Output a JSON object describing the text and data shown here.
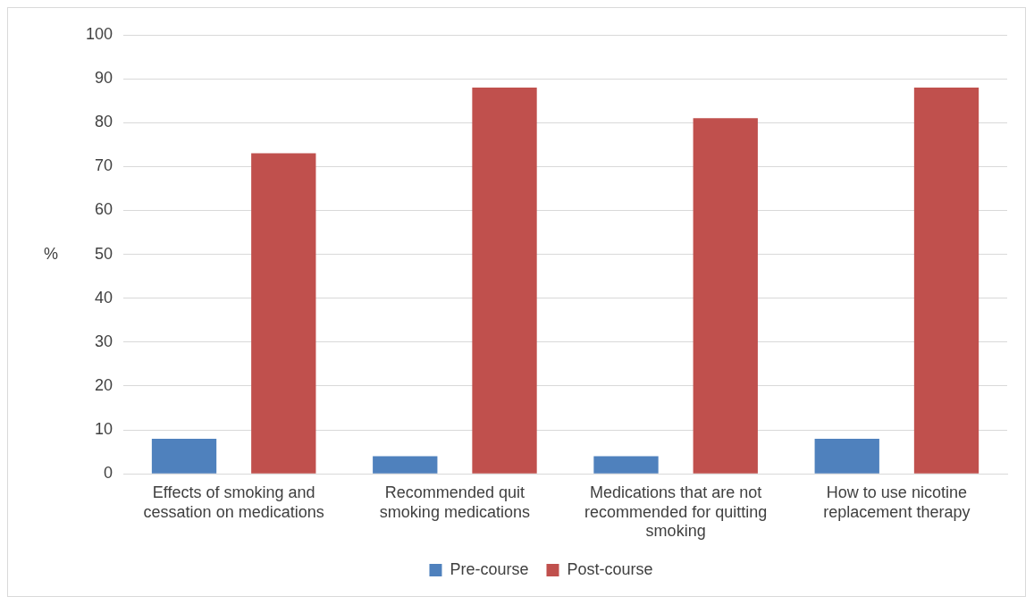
{
  "chart_data": {
    "type": "bar",
    "ylabel": "%",
    "categories": [
      "Effects of smoking and cessation on medications",
      "Recommended quit smoking medications",
      "Medications that are not recommended for quitting smoking",
      "How to use nicotine replacement therapy"
    ],
    "series": [
      {
        "name": "Pre-course",
        "color": "#4f81bd",
        "values": [
          8,
          4,
          4,
          8
        ]
      },
      {
        "name": "Post-course",
        "color": "#c0504d",
        "values": [
          73,
          88,
          81,
          88
        ]
      }
    ],
    "ylim": [
      0,
      100
    ],
    "yticks": [
      0,
      10,
      20,
      30,
      40,
      50,
      60,
      70,
      80,
      90,
      100
    ],
    "grid": "y",
    "legend": "bottom"
  }
}
